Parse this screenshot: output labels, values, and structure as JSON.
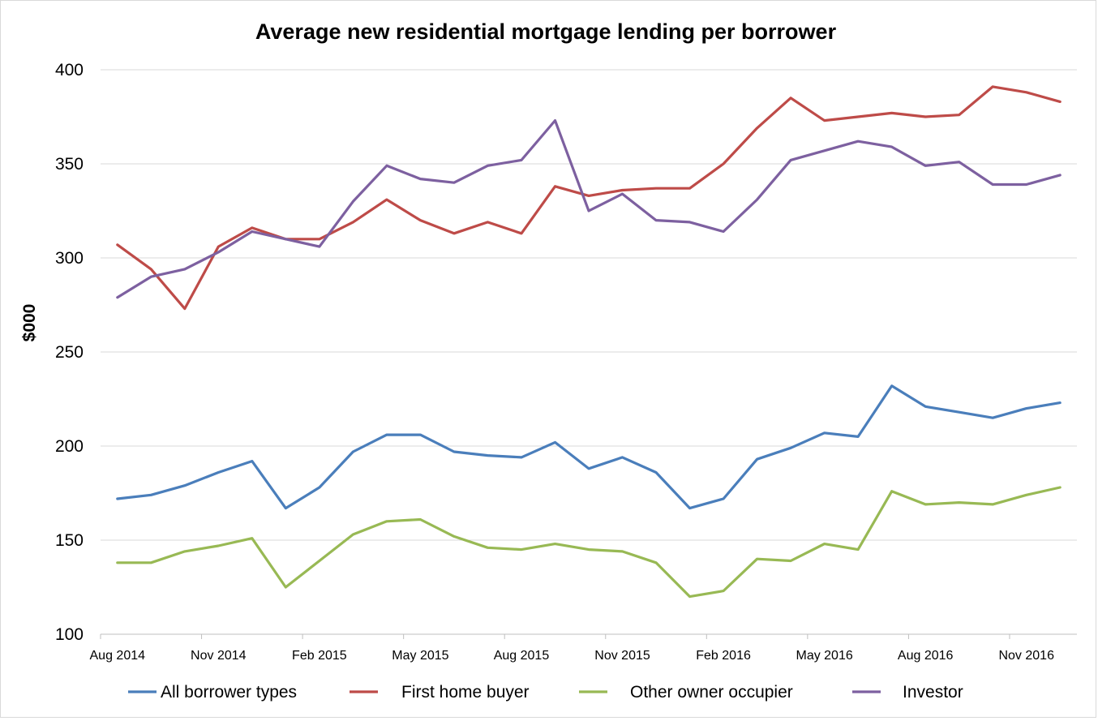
{
  "chart_data": {
    "type": "line",
    "title": "Average new residential mortgage lending per borrower",
    "xlabel": "",
    "ylabel": "$000",
    "ylim": [
      100,
      400
    ],
    "yticks": [
      100,
      150,
      200,
      250,
      300,
      350,
      400
    ],
    "grid": "horizontal",
    "legend_position": "bottom",
    "x": [
      "Aug 2014",
      "Sep 2014",
      "Oct 2014",
      "Nov 2014",
      "Dec 2014",
      "Jan 2015",
      "Feb 2015",
      "Mar 2015",
      "Apr 2015",
      "May 2015",
      "Jun 2015",
      "Jul 2015",
      "Aug 2015",
      "Sep 2015",
      "Oct 2015",
      "Nov 2015",
      "Dec 2015",
      "Jan 2016",
      "Feb 2016",
      "Mar 2016",
      "Apr 2016",
      "May 2016",
      "Jun 2016",
      "Jul 2016",
      "Aug 2016",
      "Sep 2016",
      "Oct 2016",
      "Nov 2016",
      "Dec 2016"
    ],
    "x_tick_labels": [
      {
        "index": 0,
        "label": "Aug 2014"
      },
      {
        "index": 3,
        "label": "Nov 2014"
      },
      {
        "index": 6,
        "label": "Feb 2015"
      },
      {
        "index": 9,
        "label": "May 2015"
      },
      {
        "index": 12,
        "label": "Aug 2015"
      },
      {
        "index": 15,
        "label": "Nov 2015"
      },
      {
        "index": 18,
        "label": "Feb 2016"
      },
      {
        "index": 21,
        "label": "May 2016"
      },
      {
        "index": 24,
        "label": "Aug 2016"
      },
      {
        "index": 27,
        "label": "Nov 2016"
      }
    ],
    "series": [
      {
        "name": "All borrower types",
        "color": "#4a7ebb",
        "values": [
          172,
          174,
          179,
          186,
          192,
          167,
          178,
          197,
          206,
          206,
          197,
          195,
          194,
          202,
          188,
          194,
          186,
          167,
          172,
          193,
          199,
          207,
          205,
          232,
          221,
          218,
          215,
          220,
          223
        ]
      },
      {
        "name": "First home buyer",
        "color": "#be4b48",
        "values": [
          307,
          294,
          273,
          306,
          316,
          310,
          310,
          319,
          331,
          320,
          313,
          319,
          313,
          338,
          333,
          336,
          337,
          337,
          350,
          369,
          385,
          373,
          375,
          377,
          375,
          376,
          391,
          388,
          383
        ]
      },
      {
        "name": "Other owner occupier",
        "color": "#98b954",
        "values": [
          138,
          138,
          144,
          147,
          151,
          125,
          139,
          153,
          160,
          161,
          152,
          146,
          145,
          148,
          145,
          144,
          138,
          120,
          123,
          140,
          139,
          148,
          145,
          176,
          169,
          170,
          169,
          174,
          178
        ]
      },
      {
        "name": "Investor",
        "color": "#7d60a0",
        "values": [
          279,
          290,
          294,
          303,
          314,
          310,
          306,
          330,
          349,
          342,
          340,
          349,
          352,
          373,
          325,
          334,
          320,
          319,
          314,
          331,
          352,
          357,
          362,
          359,
          349,
          351,
          339,
          339,
          344
        ]
      }
    ]
  }
}
